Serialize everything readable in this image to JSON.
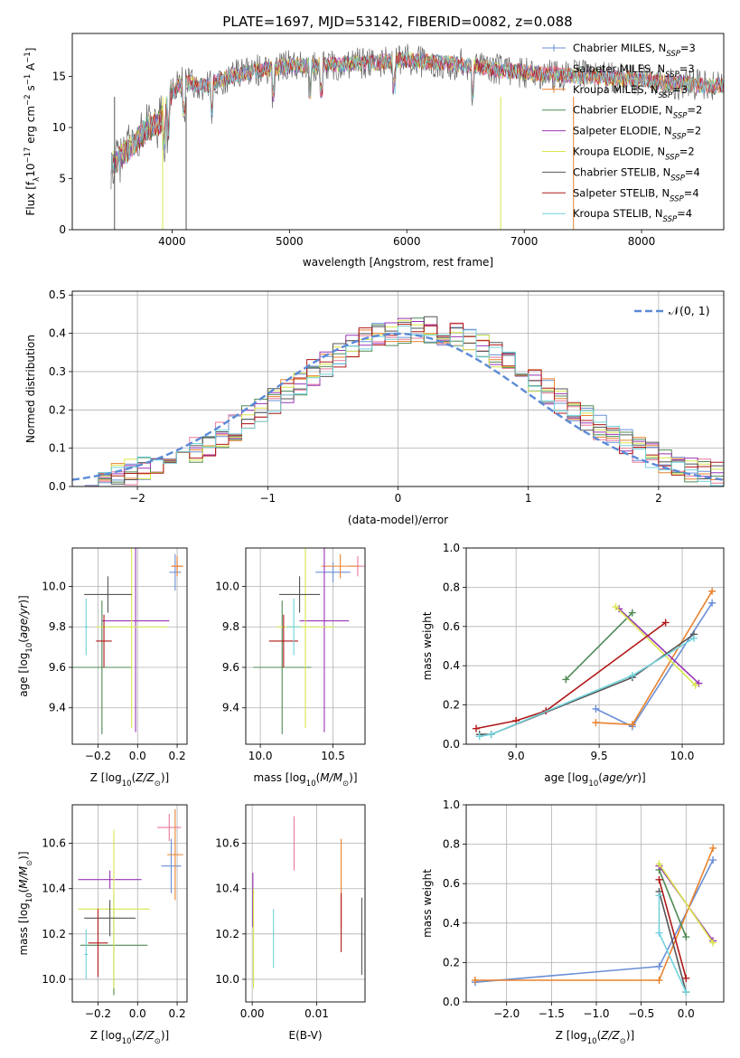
{
  "figure_title": "PLATE=1697, MJD=53142, FIBERID=0082, z=0.088",
  "colors": {
    "Chabrier MILES": "#6a8fd6",
    "Salpeter MILES": "#e8799a",
    "Kroupa MILES": "#e8822d",
    "Chabrier ELODIE": "#4f8a55",
    "Salpeter ELODIE": "#9a35b5",
    "Kroupa ELODIE": "#d9e64a",
    "Chabrier STELIB": "#555555",
    "Salpeter STELIB": "#b01818",
    "Kroupa STELIB": "#72d2dc",
    "gaussian": "#5b8ad6"
  },
  "chart_data": [
    {
      "id": "spectrum",
      "type": "line",
      "title": "PLATE=1697, MJD=53142, FIBERID=0082, z=0.088",
      "xlabel": "wavelength [Angstrom, rest frame]",
      "ylabel": "Flux [fλ10⁻¹⁷ erg cm⁻² s⁻¹ A⁻¹]",
      "xlim": [
        3150,
        8700
      ],
      "ylim": [
        0,
        19.2
      ],
      "xticks": [
        "4000",
        "5000",
        "6000",
        "7000",
        "8000"
      ],
      "yticks": [
        "0",
        "5",
        "10",
        "15"
      ],
      "legend_position": "right",
      "legend": [
        "Chabrier MILES, NSSP=3",
        "Salpeter MILES, NSSP=3",
        "Kroupa MILES, NSSP=3",
        "Chabrier ELODIE, NSSP=2",
        "Salpeter ELODIE, NSSP=2",
        "Kroupa ELODIE, NSSP=2",
        "Chabrier STELIB, NSSP=4",
        "Salpeter STELIB, NSSP=4",
        "Kroupa STELIB, NSSP=4"
      ],
      "continuum": {
        "x": [
          3500,
          3600,
          3700,
          3800,
          3900,
          4000,
          4100,
          4200,
          4300,
          4400,
          4500,
          4700,
          5000,
          5500,
          6000,
          6500,
          6800,
          7000,
          7200,
          7500,
          7800,
          8000,
          8200,
          8500
        ],
        "y": [
          6.5,
          7.5,
          8.8,
          10.0,
          10.5,
          13.5,
          14.5,
          14.2,
          14.0,
          14.6,
          15.0,
          15.5,
          16.0,
          16.2,
          16.6,
          16.1,
          15.6,
          15.4,
          15.2,
          15.0,
          14.8,
          14.6,
          14.4,
          14.1
        ]
      }
    },
    {
      "id": "residuals",
      "type": "histogram",
      "xlabel": "(data-model)/error",
      "ylabel": "Normed distribution",
      "xlim": [
        -2.5,
        2.5
      ],
      "ylim": [
        0,
        0.51
      ],
      "xticks": [
        "−2",
        "−1",
        "0",
        "1",
        "2"
      ],
      "yticks": [
        "0.0",
        "0.1",
        "0.2",
        "0.3",
        "0.4",
        "0.5"
      ],
      "legend": [
        "𝒩(0, 1)"
      ],
      "legend_position": "upper right",
      "bin_width": 0.1,
      "reference_curve": {
        "name": "𝒩(0, 1)",
        "mu": 0,
        "sigma": 1
      }
    },
    {
      "id": "age_vs_Z",
      "type": "errorbar",
      "xlabel": "Z [log10(Z/Z⊙)]",
      "ylabel": "age  [log10(age/yr)]",
      "xlim": [
        -0.33,
        0.25
      ],
      "ylim": [
        9.22,
        10.19
      ],
      "xticks": [
        "−0.2",
        "0.0",
        "0.2"
      ],
      "yticks": [
        "9.4",
        "9.6",
        "9.8",
        "10.0"
      ],
      "points": [
        {
          "series": "Chabrier MILES",
          "x": 0.19,
          "y": 10.07,
          "xerr": 0.03,
          "yerr": 0.09
        },
        {
          "series": "Salpeter MILES",
          "x": 0.2,
          "y": 10.1,
          "xerr": 0.03,
          "yerr": 0.03
        },
        {
          "series": "Kroupa MILES",
          "x": 0.2,
          "y": 10.1,
          "xerr": 0.03,
          "yerr": 0.05
        },
        {
          "series": "Chabrier ELODIE",
          "x": -0.18,
          "y": 9.6,
          "xerr": 0.15,
          "yerr": 0.33
        },
        {
          "series": "Salpeter ELODIE",
          "x": -0.01,
          "y": 9.83,
          "xerr": 0.17,
          "yerr": 0.55
        },
        {
          "series": "Kroupa ELODIE",
          "x": -0.03,
          "y": 9.8,
          "xerr": 0.18,
          "yerr": 0.5
        },
        {
          "series": "Chabrier STELIB",
          "x": -0.15,
          "y": 9.96,
          "xerr": 0.12,
          "yerr": 0.09
        },
        {
          "series": "Salpeter STELIB",
          "x": -0.17,
          "y": 9.73,
          "xerr": 0.04,
          "yerr": 0.13
        },
        {
          "series": "Kroupa STELIB",
          "x": -0.26,
          "y": 9.8,
          "xerr": 0.01,
          "yerr": 0.14
        }
      ]
    },
    {
      "id": "age_vs_mass",
      "type": "errorbar",
      "xlabel": "mass [log10(M/M⊙)]",
      "ylabel": "",
      "xlim": [
        9.9,
        10.72
      ],
      "ylim": [
        9.22,
        10.19
      ],
      "xticks": [
        "10.0",
        "10.5"
      ],
      "yticks": [
        "9.4",
        "9.6",
        "9.8",
        "10.0"
      ],
      "points": [
        {
          "series": "Chabrier MILES",
          "x": 10.5,
          "y": 10.07,
          "xerr": 0.12,
          "yerr": 0.05
        },
        {
          "series": "Salpeter MILES",
          "x": 10.67,
          "y": 10.1,
          "xerr": 0.06,
          "yerr": 0.05
        },
        {
          "series": "Kroupa MILES",
          "x": 10.55,
          "y": 10.1,
          "xerr": 0.13,
          "yerr": 0.06
        },
        {
          "series": "Chabrier ELODIE",
          "x": 10.15,
          "y": 9.6,
          "xerr": 0.2,
          "yerr": 0.33
        },
        {
          "series": "Salpeter ELODIE",
          "x": 10.44,
          "y": 9.83,
          "xerr": 0.17,
          "yerr": 0.55
        },
        {
          "series": "Kroupa ELODIE",
          "x": 10.31,
          "y": 9.8,
          "xerr": 0.2,
          "yerr": 0.5
        },
        {
          "series": "Chabrier STELIB",
          "x": 10.27,
          "y": 9.96,
          "xerr": 0.14,
          "yerr": 0.09
        },
        {
          "series": "Salpeter STELIB",
          "x": 10.16,
          "y": 9.73,
          "xerr": 0.1,
          "yerr": 0.13
        },
        {
          "series": "Kroupa STELIB",
          "x": 10.23,
          "y": 9.8,
          "xerr": 0.05,
          "yerr": 0.14
        }
      ]
    },
    {
      "id": "weight_vs_age",
      "type": "line",
      "xlabel": "age  [log10(age/yr)]",
      "ylabel": "mass weight",
      "xlim": [
        8.7,
        10.25
      ],
      "ylim": [
        0,
        1
      ],
      "xticks": [
        "9.0",
        "9.5",
        "10.0"
      ],
      "yticks": [
        "0.0",
        "0.2",
        "0.4",
        "0.6",
        "0.8",
        "1.0"
      ],
      "series": [
        {
          "name": "Chabrier MILES",
          "x": [
            9.48,
            9.7,
            10.18
          ],
          "y": [
            0.18,
            0.09,
            0.72
          ]
        },
        {
          "name": "Kroupa MILES",
          "x": [
            9.48,
            9.7,
            10.18
          ],
          "y": [
            0.11,
            0.1,
            0.78
          ]
        },
        {
          "name": "Chabrier ELODIE",
          "x": [
            9.3,
            9.7
          ],
          "y": [
            0.33,
            0.67
          ]
        },
        {
          "name": "Salpeter ELODIE",
          "x": [
            9.62,
            10.1
          ],
          "y": [
            0.69,
            0.31
          ]
        },
        {
          "name": "Kroupa ELODIE",
          "x": [
            9.6,
            10.08
          ],
          "y": [
            0.7,
            0.3
          ]
        },
        {
          "name": "Chabrier STELIB",
          "x": [
            8.78,
            8.85,
            9.7,
            10.07
          ],
          "y": [
            0.05,
            0.05,
            0.34,
            0.56
          ]
        },
        {
          "name": "Salpeter STELIB",
          "x": [
            8.76,
            9.0,
            9.18,
            9.9
          ],
          "y": [
            0.08,
            0.12,
            0.17,
            0.62
          ]
        },
        {
          "name": "Kroupa STELIB",
          "x": [
            8.78,
            8.85,
            9.7,
            10.07
          ],
          "y": [
            0.04,
            0.05,
            0.35,
            0.54
          ]
        }
      ]
    },
    {
      "id": "mass_vs_Z",
      "type": "errorbar",
      "xlabel": "Z [log10(Z/Z⊙)]",
      "ylabel": "mass [log10(M/M⊙)]",
      "xlim": [
        -0.33,
        0.25
      ],
      "ylim": [
        9.9,
        10.77
      ],
      "xticks": [
        "−0.2",
        "0.0",
        "0.2"
      ],
      "yticks": [
        "10.0",
        "10.2",
        "10.4",
        "10.6"
      ],
      "points": [
        {
          "series": "Chabrier MILES",
          "x": 0.17,
          "y": 10.5,
          "xerr": 0.05,
          "yerr": 0.12
        },
        {
          "series": "Salpeter MILES",
          "x": 0.16,
          "y": 10.67,
          "xerr": 0.06,
          "yerr": 0.06
        },
        {
          "series": "Kroupa MILES",
          "x": 0.19,
          "y": 10.55,
          "xerr": 0.04,
          "yerr": 0.2
        },
        {
          "series": "Chabrier ELODIE",
          "x": -0.12,
          "y": 10.15,
          "xerr": 0.17,
          "yerr": 0.22
        },
        {
          "series": "Salpeter ELODIE",
          "x": -0.14,
          "y": 10.44,
          "xerr": 0.16,
          "yerr": 0.04
        },
        {
          "series": "Kroupa ELODIE",
          "x": -0.12,
          "y": 10.31,
          "xerr": 0.18,
          "yerr": 0.35
        },
        {
          "series": "Chabrier STELIB",
          "x": -0.14,
          "y": 10.27,
          "xerr": 0.13,
          "yerr": 0.08
        },
        {
          "series": "Salpeter STELIB",
          "x": -0.2,
          "y": 10.16,
          "xerr": 0.05,
          "yerr": 0.15
        },
        {
          "series": "Kroupa STELIB",
          "x": -0.26,
          "y": 10.11,
          "xerr": 0.01,
          "yerr": 0.11
        }
      ]
    },
    {
      "id": "mass_vs_ebv",
      "type": "errorbar",
      "xlabel": "E(B-V)",
      "ylabel": "",
      "xlim": [
        -0.001,
        0.0175
      ],
      "ylim": [
        9.9,
        10.77
      ],
      "xticks": [
        "0.00",
        "0.01"
      ],
      "yticks": [
        "10.0",
        "10.2",
        "10.4",
        "10.6"
      ],
      "points": [
        {
          "series": "Salpeter MILES",
          "x": 0.0065,
          "y": 10.6,
          "xerr": 0,
          "yerr": 0.12
        },
        {
          "series": "Kroupa MILES",
          "x": 0.0138,
          "y": 10.42,
          "xerr": 0,
          "yerr": 0.2
        },
        {
          "series": "Salpeter ELODIE",
          "x": 0.0001,
          "y": 10.35,
          "xerr": 0,
          "yerr": 0.12
        },
        {
          "series": "Kroupa ELODIE",
          "x": 0.0002,
          "y": 10.18,
          "xerr": 0,
          "yerr": 0.22
        },
        {
          "series": "Chabrier STELIB",
          "x": 0.017,
          "y": 10.19,
          "xerr": 0,
          "yerr": 0.17
        },
        {
          "series": "Salpeter STELIB",
          "x": 0.0138,
          "y": 10.25,
          "xerr": 0,
          "yerr": 0.13
        },
        {
          "series": "Kroupa STELIB",
          "x": 0.0033,
          "y": 10.18,
          "xerr": 0,
          "yerr": 0.13
        }
      ]
    },
    {
      "id": "weight_vs_Z",
      "type": "line",
      "xlabel": "Z [log10(Z/Z⊙)]",
      "ylabel": "mass weight",
      "xlim": [
        -2.45,
        0.42
      ],
      "ylim": [
        0,
        1
      ],
      "xticks": [
        "−2.0",
        "−1.5",
        "−1.0",
        "−0.5",
        "0.0"
      ],
      "yticks": [
        "0.0",
        "0.2",
        "0.4",
        "0.6",
        "0.8",
        "1.0"
      ],
      "series": [
        {
          "name": "Chabrier MILES",
          "x": [
            -2.35,
            -0.3,
            0.3
          ],
          "y": [
            0.1,
            0.18,
            0.72
          ]
        },
        {
          "name": "Kroupa MILES",
          "x": [
            -2.35,
            -0.3,
            0.3
          ],
          "y": [
            0.11,
            0.11,
            0.78
          ]
        },
        {
          "name": "Chabrier ELODIE",
          "x": [
            -0.3,
            0.0
          ],
          "y": [
            0.67,
            0.33
          ]
        },
        {
          "name": "Salpeter ELODIE",
          "x": [
            -0.3,
            0.3
          ],
          "y": [
            0.69,
            0.31
          ]
        },
        {
          "name": "Kroupa ELODIE",
          "x": [
            -0.3,
            0.3
          ],
          "y": [
            0.7,
            0.3
          ]
        },
        {
          "name": "Chabrier STELIB",
          "x": [
            -0.3,
            0.0
          ],
          "y": [
            0.56,
            0.05
          ]
        },
        {
          "name": "Salpeter STELIB",
          "x": [
            -0.3,
            0.0
          ],
          "y": [
            0.62,
            0.12
          ]
        },
        {
          "name": "Kroupa STELIB",
          "x": [
            -0.3,
            -0.3,
            0.0
          ],
          "y": [
            0.54,
            0.35,
            0.05
          ]
        }
      ]
    }
  ]
}
